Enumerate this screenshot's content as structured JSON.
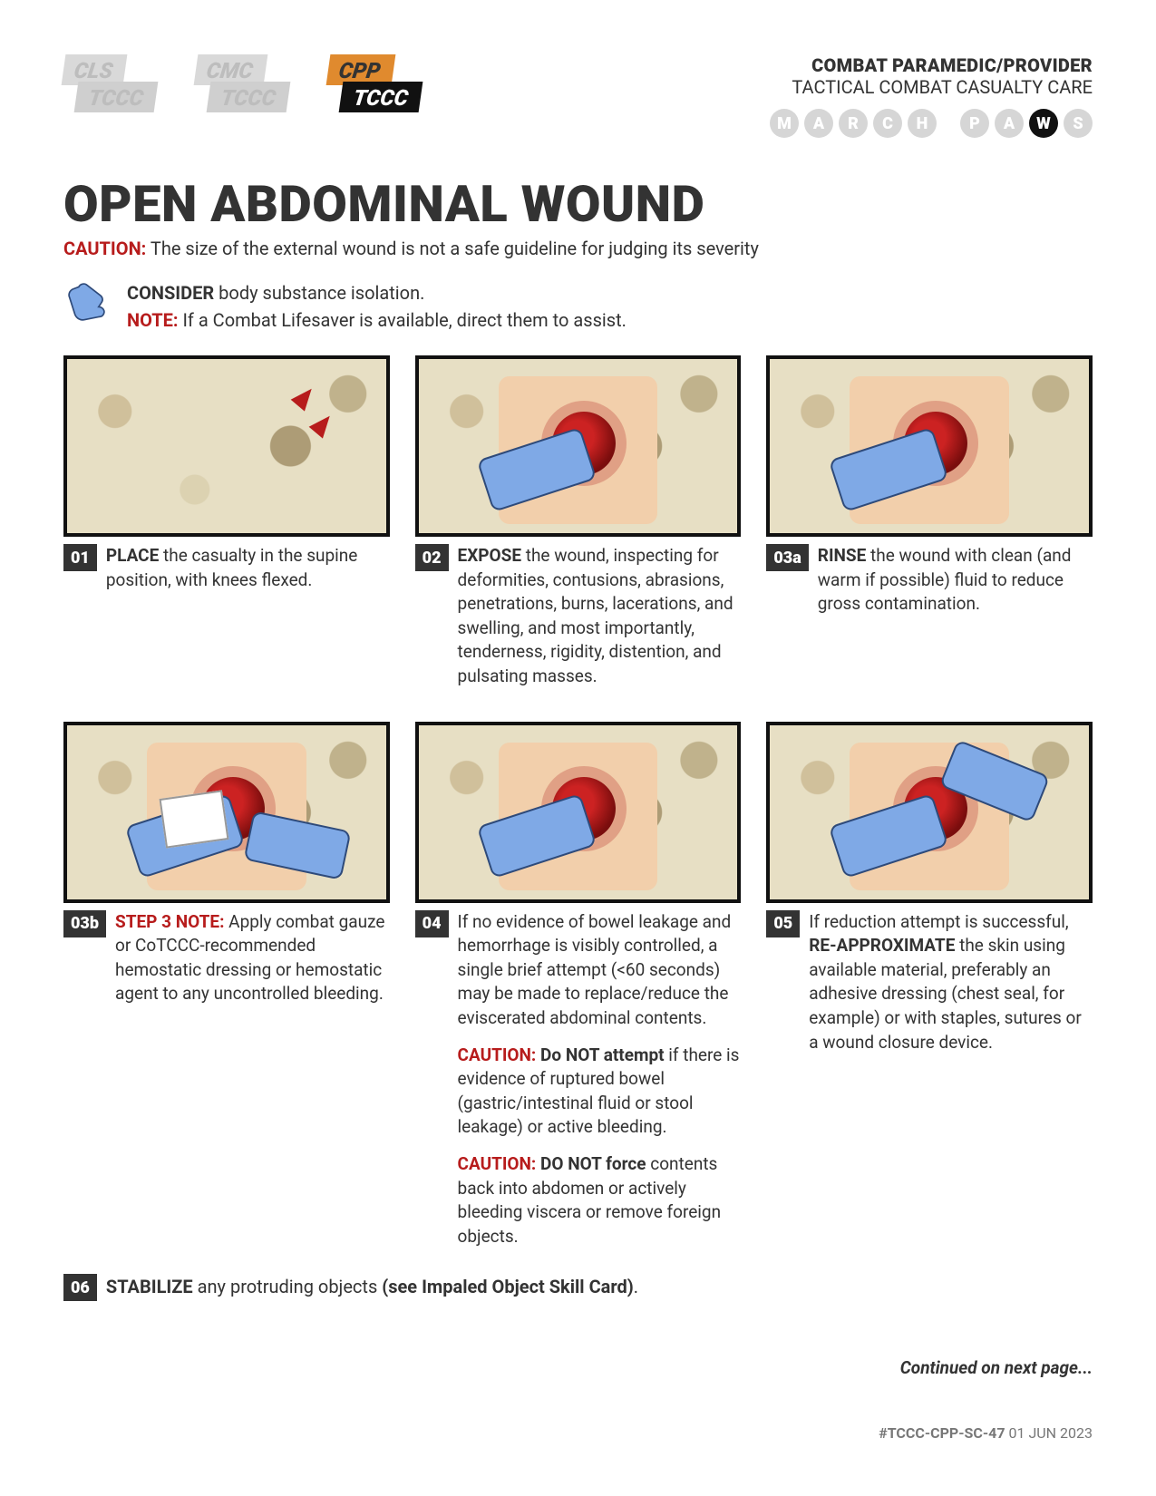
{
  "header": {
    "logos": [
      {
        "top": "CLS",
        "bottom": "TCCC",
        "variant": "grey"
      },
      {
        "top": "CMC",
        "bottom": "TCCC",
        "variant": "grey"
      },
      {
        "top": "CPP",
        "bottom": "TCCC",
        "variant": "active"
      }
    ],
    "role_line": "COMBAT PARAMEDIC/PROVIDER",
    "program_line": "TACTICAL COMBAT CASUALTY CARE",
    "mnemonic": [
      "M",
      "A",
      "R",
      "C",
      "H",
      " ",
      "P",
      "A",
      "W",
      "S"
    ],
    "mnemonic_active": "W"
  },
  "title": "OPEN ABDOMINAL WOUND",
  "caution_label": "CAUTION:",
  "caution_text": "The size of the external wound is not a safe guideline for judging its severity",
  "intro": {
    "consider_label": "CONSIDER",
    "consider_text": " body substance isolation.",
    "note_label": "NOTE:",
    "note_text": " If a Combat Lifesaver is available, direct them to assist."
  },
  "steps": [
    {
      "num": "01",
      "illus": "supine-knees-flexed",
      "paras": [
        {
          "segments": [
            {
              "style": "b",
              "text": "PLACE"
            },
            {
              "style": "",
              "text": " the casualty in the supine position, with knees flexed."
            }
          ]
        }
      ]
    },
    {
      "num": "02",
      "illus": "expose-wound",
      "paras": [
        {
          "segments": [
            {
              "style": "b",
              "text": "EXPOSE"
            },
            {
              "style": "",
              "text": " the wound, inspecting for deformities, contusions, abrasions, penetrations, burns, lacerations, and swelling, and most importantly, tenderness, rigidity, distention, and pulsating masses."
            }
          ]
        }
      ]
    },
    {
      "num": "03a",
      "illus": "rinse-wound",
      "paras": [
        {
          "segments": [
            {
              "style": "b",
              "text": "RINSE"
            },
            {
              "style": "",
              "text": " the wound with clean (and warm if possible) fluid to reduce gross contamination."
            }
          ]
        }
      ]
    },
    {
      "num": "03b",
      "illus": "combat-gauze",
      "paras": [
        {
          "segments": [
            {
              "style": "rb",
              "text": "STEP 3 NOTE:"
            },
            {
              "style": "",
              "text": " Apply combat gauze or CoTCCC-recommended hemostatic dressing or hemostatic agent to any uncontrolled bleeding."
            }
          ]
        }
      ]
    },
    {
      "num": "04",
      "illus": "reduce-attempt",
      "paras": [
        {
          "segments": [
            {
              "style": "",
              "text": "If no evidence of bowel leakage and hemorrhage is visibly controlled, a single brief attempt (<60 seconds) may be made to replace/reduce the eviscerated abdominal contents."
            }
          ]
        },
        {
          "segments": [
            {
              "style": "rb",
              "text": "CAUTION:"
            },
            {
              "style": "b",
              "text": " Do NOT attempt"
            },
            {
              "style": "",
              "text": " if there is evidence of ruptured bowel (gastric/intestinal fluid or stool leakage) or active bleeding."
            }
          ]
        },
        {
          "segments": [
            {
              "style": "rb",
              "text": "CAUTION:"
            },
            {
              "style": "b",
              "text": " DO NOT force"
            },
            {
              "style": "",
              "text": " contents back into abdomen or actively bleeding viscera or remove foreign objects."
            }
          ]
        }
      ]
    },
    {
      "num": "05",
      "illus": "reapproximate",
      "paras": [
        {
          "segments": [
            {
              "style": "",
              "text": "If reduction attempt is successful, "
            },
            {
              "style": "b",
              "text": "RE-APPROXIMATE"
            },
            {
              "style": "",
              "text": " the skin using available material, preferably an adhesive dressing (chest seal, for example) or with staples, sutures or a wound closure device."
            }
          ]
        }
      ]
    }
  ],
  "final_step": {
    "num": "06",
    "segments": [
      {
        "style": "b",
        "text": "STABILIZE"
      },
      {
        "style": "",
        "text": " any protruding objects "
      },
      {
        "style": "b",
        "text": "(see Impaled Object Skill Card)"
      },
      {
        "style": "",
        "text": "."
      }
    ]
  },
  "continued": "Continued on next page...",
  "footer": {
    "code": "#TCCC-CPP-SC-47",
    "date": " 01 JUN 2023"
  },
  "colors": {
    "red": "#b71c1c",
    "dark": "#333333",
    "orange": "#e08a2e",
    "glove": "#7fa9e6",
    "skin": "#f2cfab"
  }
}
